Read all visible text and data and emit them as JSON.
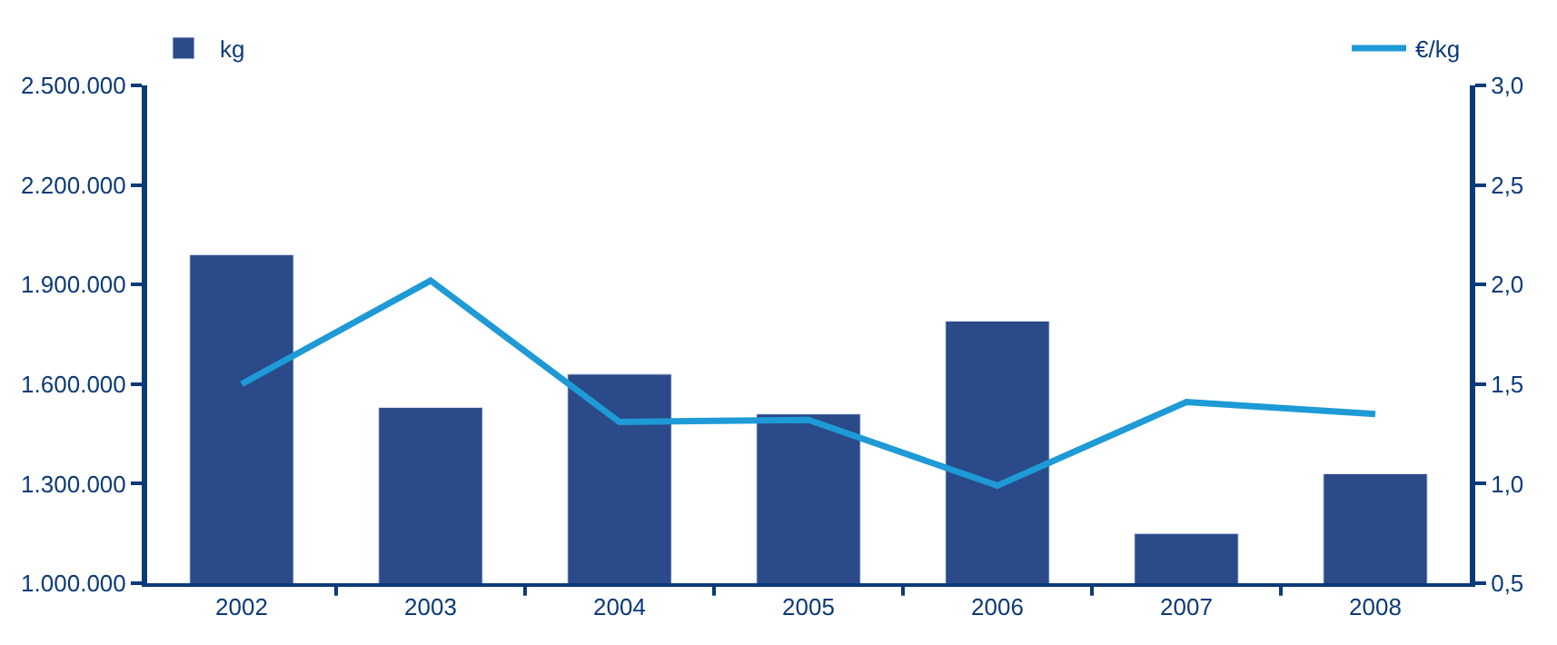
{
  "chart_data": {
    "type": "bar",
    "categories": [
      "2002",
      "2003",
      "2004",
      "2005",
      "2006",
      "2007",
      "2008"
    ],
    "series": [
      {
        "name": "kg",
        "color": "#2a4a8a",
        "values": [
          1990000,
          1530000,
          1630000,
          1510000,
          1790000,
          1150000,
          1330000
        ]
      },
      {
        "name": "€/kg",
        "type": "line",
        "axis": "y2",
        "color": "#1e9ad6",
        "values": [
          1.5,
          2.02,
          1.31,
          1.32,
          0.99,
          1.41,
          1.35
        ]
      }
    ],
    "ylim": [
      1000000,
      2500000
    ],
    "yticks": [
      {
        "value": 1000000,
        "label": "1.000.000"
      },
      {
        "value": 1300000,
        "label": "1.300.000"
      },
      {
        "value": 1600000,
        "label": "1.600.000"
      },
      {
        "value": 1900000,
        "label": "1.900.000"
      },
      {
        "value": 2200000,
        "label": "2.200.000"
      },
      {
        "value": 2500000,
        "label": "2.500.000"
      }
    ],
    "y2lim": [
      0.5,
      3.0
    ],
    "y2ticks": [
      {
        "value": 0.5,
        "label": "0,5"
      },
      {
        "value": 1.0,
        "label": "1,0"
      },
      {
        "value": 1.5,
        "label": "1,5"
      },
      {
        "value": 2.0,
        "label": "2,0"
      },
      {
        "value": 2.5,
        "label": "2,5"
      },
      {
        "value": 3.0,
        "label": "3,0"
      }
    ],
    "legend": "top",
    "marker": "none",
    "line_style": "solid"
  }
}
